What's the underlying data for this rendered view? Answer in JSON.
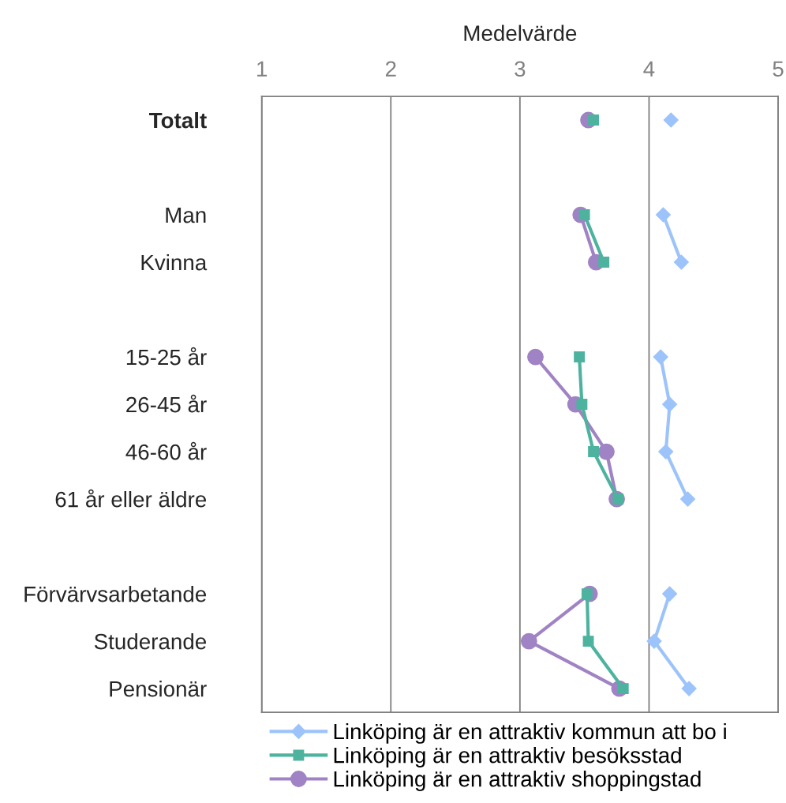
{
  "chart_data": {
    "type": "line",
    "orientation": "horizontal",
    "xlabel": "Medelvärde",
    "categories": [
      "Totalt",
      null,
      "Man",
      "Kvinna",
      null,
      "15-25 år",
      "26-45 år",
      "46-60 år",
      "61 år eller äldre",
      null,
      "Förvärvsarbetande",
      "Studerande",
      "Pensionär"
    ],
    "xlim": [
      1,
      5
    ],
    "xticks": [
      1,
      2,
      3,
      4,
      5
    ],
    "grid": "x",
    "legend": "bottom",
    "series": [
      {
        "name": "Linköping är en attraktiv kommun att bo i",
        "color": "#9dc3fb",
        "marker": "diamond",
        "values": [
          4.17,
          null,
          4.11,
          4.25,
          null,
          4.09,
          4.16,
          4.13,
          4.3,
          null,
          4.16,
          4.04,
          4.31
        ]
      },
      {
        "name": "Linköping är en attraktiv besöksstad",
        "color": "#4db39e",
        "marker": "square",
        "values": [
          3.57,
          null,
          3.5,
          3.65,
          null,
          3.46,
          3.48,
          3.57,
          3.76,
          null,
          3.52,
          3.53,
          3.8
        ]
      },
      {
        "name": "Linköping är en attraktiv shoppingstad",
        "color": "#a083c4",
        "marker": "circle",
        "values": [
          3.53,
          null,
          3.47,
          3.59,
          null,
          3.12,
          3.43,
          3.67,
          3.75,
          null,
          3.54,
          3.07,
          3.77
        ]
      }
    ]
  }
}
